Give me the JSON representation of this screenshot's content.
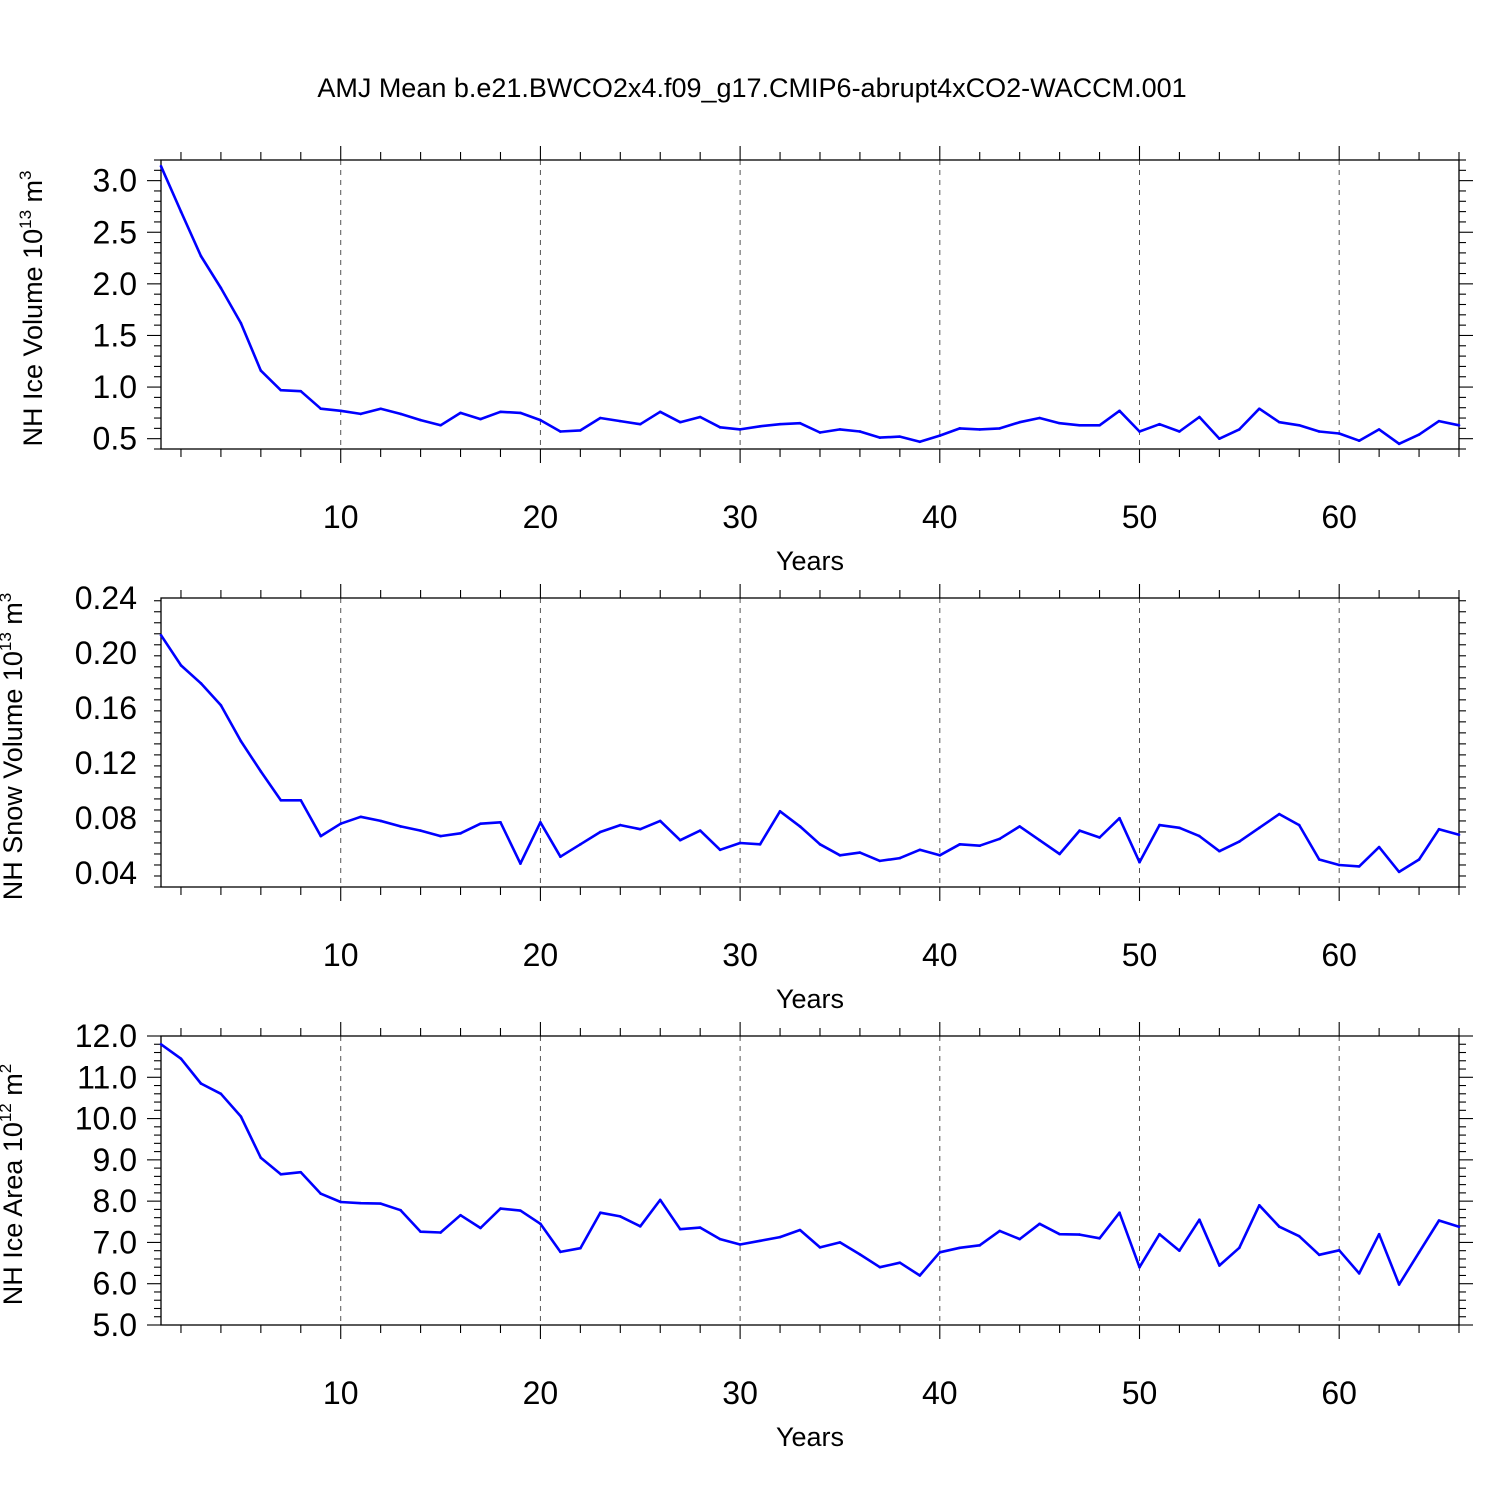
{
  "figure": {
    "title": "AMJ Mean b.e21.BWCO2x4.f09_g17.CMIP6-abrupt4xCO2-WACCM.001"
  },
  "chart_data": [
    {
      "type": "line",
      "ylabel": "NH Ice Volume 10",
      "ylabel_exponent": "13",
      "ylabel_unit": "m",
      "ylabel_unit_exponent": "3",
      "xlabel": "Years",
      "xlim": [
        1,
        66
      ],
      "ylim": [
        0.4,
        3.2
      ],
      "xticks": [
        10,
        20,
        30,
        40,
        50,
        60
      ],
      "xtick_labels": [
        "10",
        "20",
        "30",
        "40",
        "50",
        "60"
      ],
      "yticks": [
        0.5,
        1.0,
        1.5,
        2.0,
        2.5,
        3.0
      ],
      "ytick_labels": [
        "0.5",
        "1.0",
        "1.5",
        "2.0",
        "2.5",
        "3.0"
      ],
      "grid": "vertical dashed at major x ticks",
      "line_color": "#0000ff",
      "series": [
        {
          "x": [
            1,
            2,
            3,
            4,
            5,
            6,
            7,
            8,
            9,
            10,
            11,
            12,
            13,
            14,
            15,
            16,
            17,
            18,
            19,
            20,
            21,
            22,
            23,
            24,
            25,
            26,
            27,
            28,
            29,
            30,
            31,
            32,
            33,
            34,
            35,
            36,
            37,
            38,
            39,
            40,
            41,
            42,
            43,
            44,
            45,
            46,
            47,
            48,
            49,
            50,
            51,
            52,
            53,
            54,
            55,
            56,
            57,
            58,
            59,
            60,
            61,
            62,
            63,
            64,
            65,
            66
          ],
          "y": [
            3.14,
            2.7,
            2.27,
            1.96,
            1.62,
            1.16,
            0.97,
            0.96,
            0.79,
            0.77,
            0.74,
            0.79,
            0.74,
            0.68,
            0.63,
            0.75,
            0.69,
            0.76,
            0.75,
            0.68,
            0.57,
            0.58,
            0.7,
            0.67,
            0.64,
            0.76,
            0.66,
            0.71,
            0.61,
            0.59,
            0.62,
            0.64,
            0.65,
            0.56,
            0.59,
            0.57,
            0.51,
            0.52,
            0.47,
            0.53,
            0.6,
            0.59,
            0.6,
            0.66,
            0.7,
            0.65,
            0.63,
            0.63,
            0.77,
            0.57,
            0.64,
            0.57,
            0.71,
            0.5,
            0.59,
            0.79,
            0.66,
            0.63,
            0.57,
            0.55,
            0.48,
            0.59,
            0.45,
            0.54,
            0.67,
            0.63
          ]
        }
      ]
    },
    {
      "type": "line",
      "ylabel": "NH Snow Volume 10",
      "ylabel_exponent": "13",
      "ylabel_unit": "m",
      "ylabel_unit_exponent": "3",
      "xlabel": "Years",
      "xlim": [
        1,
        66
      ],
      "ylim": [
        0.03,
        0.24
      ],
      "xticks": [
        10,
        20,
        30,
        40,
        50,
        60
      ],
      "xtick_labels": [
        "10",
        "20",
        "30",
        "40",
        "50",
        "60"
      ],
      "yticks": [
        0.04,
        0.08,
        0.12,
        0.16,
        0.2,
        0.24
      ],
      "ytick_labels": [
        "0.04",
        "0.08",
        "0.12",
        "0.16",
        "0.20",
        "0.24"
      ],
      "grid": "vertical dashed at major x ticks",
      "line_color": "#0000ff",
      "series": [
        {
          "x": [
            1,
            2,
            3,
            4,
            5,
            6,
            7,
            8,
            9,
            10,
            11,
            12,
            13,
            14,
            15,
            16,
            17,
            18,
            19,
            20,
            21,
            22,
            23,
            24,
            25,
            26,
            27,
            28,
            29,
            30,
            31,
            32,
            33,
            34,
            35,
            36,
            37,
            38,
            39,
            40,
            41,
            42,
            43,
            44,
            45,
            46,
            47,
            48,
            49,
            50,
            51,
            52,
            53,
            54,
            55,
            56,
            57,
            58,
            59,
            60,
            61,
            62,
            63,
            64,
            65,
            66
          ],
          "y": [
            0.213,
            0.191,
            0.178,
            0.162,
            0.136,
            0.114,
            0.093,
            0.093,
            0.067,
            0.076,
            0.081,
            0.078,
            0.074,
            0.071,
            0.067,
            0.069,
            0.076,
            0.077,
            0.047,
            0.077,
            0.052,
            0.061,
            0.07,
            0.075,
            0.072,
            0.078,
            0.064,
            0.071,
            0.057,
            0.062,
            0.061,
            0.085,
            0.074,
            0.061,
            0.053,
            0.055,
            0.049,
            0.051,
            0.057,
            0.053,
            0.061,
            0.06,
            0.065,
            0.074,
            0.064,
            0.054,
            0.071,
            0.066,
            0.08,
            0.048,
            0.075,
            0.073,
            0.067,
            0.056,
            0.063,
            0.073,
            0.083,
            0.075,
            0.05,
            0.046,
            0.045,
            0.059,
            0.041,
            0.05,
            0.072,
            0.068
          ]
        }
      ]
    },
    {
      "type": "line",
      "ylabel": "NH Ice Area 10",
      "ylabel_exponent": "12",
      "ylabel_unit": "m",
      "ylabel_unit_exponent": "2",
      "xlabel": "Years",
      "xlim": [
        1,
        66
      ],
      "ylim": [
        5.0,
        12.0
      ],
      "xticks": [
        10,
        20,
        30,
        40,
        50,
        60
      ],
      "xtick_labels": [
        "10",
        "20",
        "30",
        "40",
        "50",
        "60"
      ],
      "yticks": [
        5.0,
        6.0,
        7.0,
        8.0,
        9.0,
        10.0,
        11.0,
        12.0
      ],
      "ytick_labels": [
        "5.0",
        "6.0",
        "7.0",
        "8.0",
        "9.0",
        "10.0",
        "11.0",
        "12.0"
      ],
      "grid": "vertical dashed at major x ticks",
      "line_color": "#0000ff",
      "series": [
        {
          "x": [
            1,
            2,
            3,
            4,
            5,
            6,
            7,
            8,
            9,
            10,
            11,
            12,
            13,
            14,
            15,
            16,
            17,
            18,
            19,
            20,
            21,
            22,
            23,
            24,
            25,
            26,
            27,
            28,
            29,
            30,
            31,
            32,
            33,
            34,
            35,
            36,
            37,
            38,
            39,
            40,
            41,
            42,
            43,
            44,
            45,
            46,
            47,
            48,
            49,
            50,
            51,
            52,
            53,
            54,
            55,
            56,
            57,
            58,
            59,
            60,
            61,
            62,
            63,
            64,
            65,
            66
          ],
          "y": [
            11.8,
            11.45,
            10.85,
            10.6,
            10.05,
            9.05,
            8.65,
            8.7,
            8.18,
            7.98,
            7.95,
            7.94,
            7.78,
            7.26,
            7.24,
            7.66,
            7.35,
            7.82,
            7.77,
            7.45,
            6.77,
            6.86,
            7.72,
            7.63,
            7.39,
            8.03,
            7.32,
            7.36,
            7.08,
            6.95,
            7.04,
            7.13,
            7.3,
            6.88,
            7.0,
            6.71,
            6.4,
            6.51,
            6.2,
            6.76,
            6.87,
            6.93,
            7.28,
            7.08,
            7.45,
            7.2,
            7.19,
            7.1,
            7.72,
            6.4,
            7.2,
            6.8,
            7.55,
            6.44,
            6.87,
            7.9,
            7.38,
            7.15,
            6.7,
            6.81,
            6.25,
            7.2,
            5.98,
            6.76,
            7.53,
            7.38
          ]
        }
      ]
    }
  ]
}
